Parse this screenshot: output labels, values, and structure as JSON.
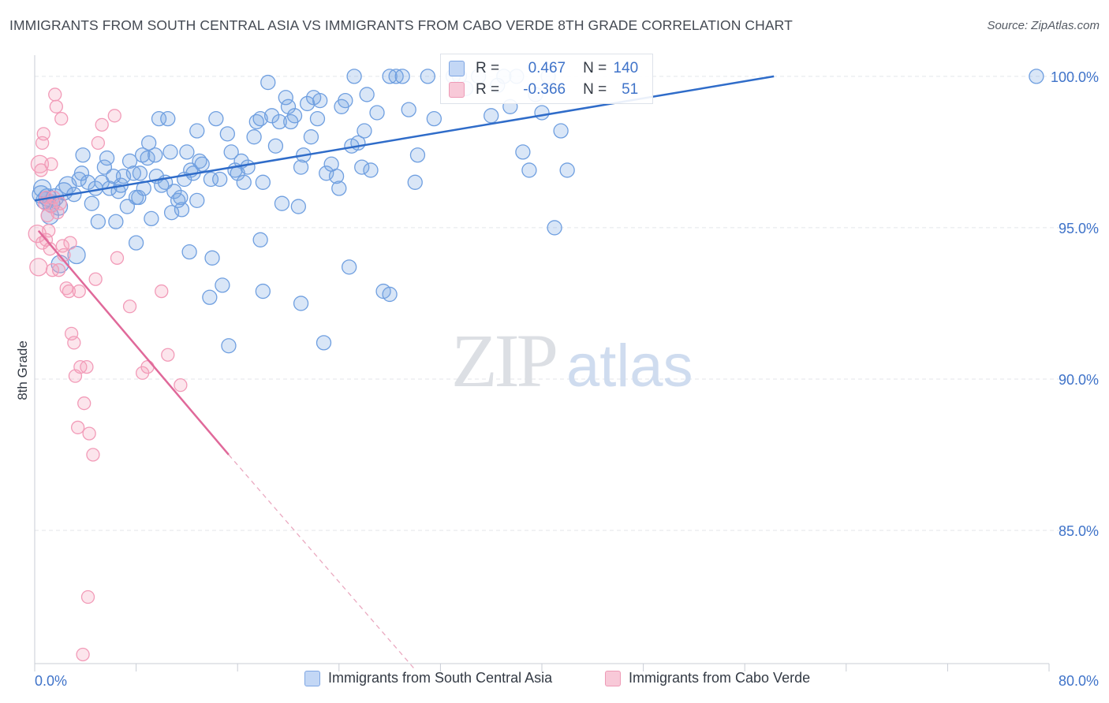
{
  "title": "IMMIGRANTS FROM SOUTH CENTRAL ASIA VS IMMIGRANTS FROM CABO VERDE 8TH GRADE CORRELATION CHART",
  "source": "Source: ZipAtlas.com",
  "watermark": {
    "zip": "ZIP",
    "atlas": "atlas"
  },
  "stats": {
    "r_label": "R =",
    "n_label": "N =",
    "rows": [
      {
        "r": "0.467",
        "n": "140"
      },
      {
        "r": "-0.366",
        "n": "51"
      }
    ]
  },
  "chart_data": {
    "type": "scatter",
    "ylabel": "8th Grade",
    "xlim": [
      0,
      80
    ],
    "ylim": [
      80.6,
      100.7
    ],
    "x_tick_labels": [
      "0.0%",
      "80.0%"
    ],
    "y_ticks": [
      100,
      95,
      90,
      85
    ],
    "y_tick_labels": [
      "100.0%",
      "95.0%",
      "90.0%",
      "85.0%"
    ],
    "grid": true,
    "colors": {
      "blue": "#6f9fe0",
      "blue_line": "#2f6cc9",
      "pink": "#f29bb8",
      "pink_line": "#e0699a"
    },
    "series": [
      {
        "name": "Immigrants from South Central Asia",
        "trend": {
          "x": [
            0,
            58.3
          ],
          "y": [
            95.9,
            100.0
          ]
        },
        "points": [
          [
            0.5,
            96.1
          ],
          [
            0.8,
            95.9
          ],
          [
            1.0,
            96.0
          ],
          [
            1.3,
            95.8
          ],
          [
            1.6,
            96.0
          ],
          [
            1.9,
            95.7
          ],
          [
            2.3,
            96.2
          ],
          [
            2.6,
            96.4
          ],
          [
            0.6,
            96.3
          ],
          [
            1.2,
            95.4
          ],
          [
            2.0,
            93.8
          ],
          [
            3.3,
            94.1
          ],
          [
            3.5,
            96.6
          ],
          [
            3.7,
            96.8
          ],
          [
            3.8,
            97.4
          ],
          [
            4.2,
            96.5
          ],
          [
            4.5,
            95.8
          ],
          [
            4.8,
            96.3
          ],
          [
            5.0,
            95.2
          ],
          [
            5.3,
            96.5
          ],
          [
            5.5,
            97.0
          ],
          [
            5.7,
            97.3
          ],
          [
            5.9,
            96.3
          ],
          [
            6.2,
            96.7
          ],
          [
            6.4,
            95.2
          ],
          [
            6.6,
            96.2
          ],
          [
            6.8,
            96.4
          ],
          [
            7.0,
            96.7
          ],
          [
            7.3,
            95.7
          ],
          [
            7.5,
            97.2
          ],
          [
            7.8,
            96.8
          ],
          [
            8.0,
            96.0
          ],
          [
            8.2,
            96.0
          ],
          [
            8.3,
            96.8
          ],
          [
            8.5,
            97.4
          ],
          [
            8.6,
            96.3
          ],
          [
            8.9,
            97.3
          ],
          [
            9.0,
            97.8
          ],
          [
            9.2,
            95.3
          ],
          [
            9.5,
            97.4
          ],
          [
            9.6,
            96.7
          ],
          [
            9.8,
            98.6
          ],
          [
            10.0,
            96.4
          ],
          [
            10.3,
            96.5
          ],
          [
            10.5,
            98.6
          ],
          [
            10.7,
            97.5
          ],
          [
            10.8,
            95.5
          ],
          [
            11.0,
            96.2
          ],
          [
            11.3,
            95.9
          ],
          [
            11.5,
            96.0
          ],
          [
            11.8,
            96.6
          ],
          [
            12.0,
            97.5
          ],
          [
            12.3,
            96.9
          ],
          [
            12.5,
            96.8
          ],
          [
            12.8,
            98.2
          ],
          [
            13.0,
            97.2
          ],
          [
            13.2,
            97.1
          ],
          [
            12.2,
            94.2
          ],
          [
            13.9,
            96.6
          ],
          [
            14.3,
            98.6
          ],
          [
            14.6,
            96.6
          ],
          [
            15.2,
            98.1
          ],
          [
            15.5,
            97.5
          ],
          [
            15.8,
            96.9
          ],
          [
            16.0,
            96.8
          ],
          [
            16.3,
            97.2
          ],
          [
            16.5,
            96.5
          ],
          [
            16.8,
            97.0
          ],
          [
            17.3,
            98.0
          ],
          [
            17.5,
            98.5
          ],
          [
            17.8,
            98.6
          ],
          [
            18.0,
            96.5
          ],
          [
            18.4,
            99.8
          ],
          [
            18.7,
            98.7
          ],
          [
            19.0,
            97.7
          ],
          [
            19.3,
            98.5
          ],
          [
            19.5,
            95.8
          ],
          [
            19.8,
            99.3
          ],
          [
            20.0,
            99.0
          ],
          [
            20.2,
            98.5
          ],
          [
            20.5,
            98.7
          ],
          [
            20.8,
            95.7
          ],
          [
            21.0,
            97.0
          ],
          [
            21.2,
            97.4
          ],
          [
            21.5,
            99.1
          ],
          [
            21.8,
            98.0
          ],
          [
            22.0,
            99.3
          ],
          [
            22.3,
            98.6
          ],
          [
            22.5,
            99.2
          ],
          [
            23.0,
            96.8
          ],
          [
            23.4,
            97.1
          ],
          [
            23.8,
            96.7
          ],
          [
            24.0,
            96.3
          ],
          [
            24.2,
            99.0
          ],
          [
            24.5,
            99.2
          ],
          [
            24.8,
            93.7
          ],
          [
            25.0,
            97.7
          ],
          [
            25.2,
            100.0
          ],
          [
            25.5,
            97.8
          ],
          [
            25.8,
            97.0
          ],
          [
            26.0,
            98.2
          ],
          [
            26.2,
            99.4
          ],
          [
            26.5,
            96.9
          ],
          [
            27.0,
            98.8
          ],
          [
            27.5,
            92.9
          ],
          [
            28.0,
            100.0
          ],
          [
            28.5,
            100.0
          ],
          [
            29.0,
            100.0
          ],
          [
            29.5,
            98.9
          ],
          [
            30.0,
            96.5
          ],
          [
            30.2,
            97.4
          ],
          [
            31.0,
            100.0
          ],
          [
            31.5,
            98.6
          ],
          [
            33.0,
            100.0
          ],
          [
            35.0,
            100.0
          ],
          [
            36.0,
            98.7
          ],
          [
            37.0,
            100.0
          ],
          [
            37.5,
            99.0
          ],
          [
            38.0,
            100.0
          ],
          [
            38.5,
            97.5
          ],
          [
            39.0,
            96.9
          ],
          [
            40.0,
            98.8
          ],
          [
            40.5,
            100.0
          ],
          [
            41.5,
            98.2
          ],
          [
            41.0,
            95.0
          ],
          [
            42.0,
            96.9
          ],
          [
            39.5,
            99.4
          ],
          [
            36.5,
            99.7
          ],
          [
            34.0,
            99.6
          ],
          [
            33.5,
            100.0
          ],
          [
            8.0,
            94.5
          ],
          [
            12.8,
            95.9
          ],
          [
            14.0,
            94.0
          ],
          [
            13.8,
            92.7
          ],
          [
            14.8,
            93.1
          ],
          [
            15.3,
            91.1
          ],
          [
            17.8,
            94.6
          ],
          [
            18.0,
            92.9
          ],
          [
            21.0,
            92.5
          ],
          [
            22.8,
            91.2
          ],
          [
            28.0,
            92.8
          ],
          [
            79.0,
            100.0
          ],
          [
            11.6,
            95.6
          ],
          [
            3.1,
            96.1
          ]
        ]
      },
      {
        "name": "Immigrants from Cabo Verde",
        "trend": {
          "x": [
            0.3,
            15.3
          ],
          "y": [
            94.9,
            87.5
          ]
        },
        "trend_ext": {
          "x": [
            15.3,
            30.0
          ],
          "y": [
            87.5,
            80.4
          ]
        },
        "points": [
          [
            0.2,
            94.8
          ],
          [
            0.3,
            93.7
          ],
          [
            0.4,
            97.1
          ],
          [
            0.5,
            96.9
          ],
          [
            0.6,
            97.8
          ],
          [
            0.7,
            98.1
          ],
          [
            0.8,
            95.8
          ],
          [
            0.9,
            96.0
          ],
          [
            1.0,
            95.4
          ],
          [
            1.1,
            94.9
          ],
          [
            1.2,
            94.3
          ],
          [
            1.3,
            97.1
          ],
          [
            1.4,
            93.6
          ],
          [
            1.5,
            96.0
          ],
          [
            1.6,
            99.4
          ],
          [
            1.7,
            99.0
          ],
          [
            1.8,
            95.5
          ],
          [
            1.9,
            93.6
          ],
          [
            2.0,
            95.8
          ],
          [
            2.1,
            98.6
          ],
          [
            2.2,
            94.4
          ],
          [
            2.3,
            94.1
          ],
          [
            2.5,
            93.0
          ],
          [
            2.7,
            92.9
          ],
          [
            2.9,
            91.5
          ],
          [
            3.1,
            91.2
          ],
          [
            3.2,
            90.1
          ],
          [
            3.4,
            88.4
          ],
          [
            3.6,
            90.4
          ],
          [
            3.9,
            89.2
          ],
          [
            4.1,
            90.4
          ],
          [
            4.3,
            88.2
          ],
          [
            4.6,
            87.5
          ],
          [
            4.8,
            93.3
          ],
          [
            5.0,
            97.8
          ],
          [
            5.3,
            98.4
          ],
          [
            6.3,
            98.7
          ],
          [
            6.5,
            94.0
          ],
          [
            7.5,
            92.4
          ],
          [
            8.5,
            90.2
          ],
          [
            8.9,
            90.4
          ],
          [
            10.0,
            92.9
          ],
          [
            10.5,
            90.8
          ],
          [
            11.5,
            89.8
          ],
          [
            3.5,
            92.9
          ],
          [
            2.8,
            94.5
          ],
          [
            0.6,
            94.5
          ],
          [
            1.3,
            95.7
          ],
          [
            4.2,
            82.8
          ],
          [
            3.8,
            80.9
          ],
          [
            0.9,
            94.6
          ]
        ]
      }
    ]
  }
}
